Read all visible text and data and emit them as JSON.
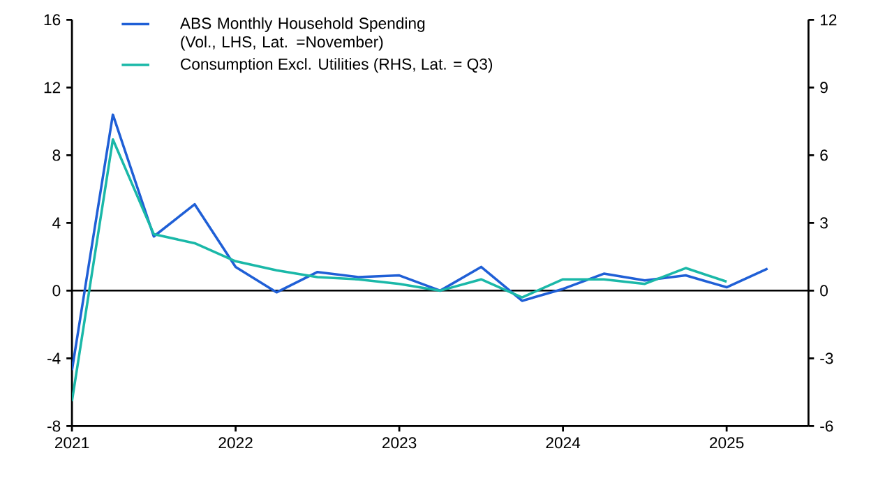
{
  "chart_data": {
    "type": "line",
    "x": [
      2021.0,
      2021.25,
      2021.5,
      2021.75,
      2022.0,
      2022.25,
      2022.5,
      2022.75,
      2023.0,
      2023.25,
      2023.5,
      2023.75,
      2024.0,
      2024.25,
      2024.5,
      2024.75,
      2025.0,
      2025.25
    ],
    "series": [
      {
        "name": "ABS Monthly Household Spending (Vol., LHS, Lat. =November)",
        "color": "#1f5fd6",
        "axis": "y",
        "values": [
          -4.7,
          10.4,
          3.2,
          5.1,
          1.4,
          -0.1,
          1.1,
          0.8,
          0.9,
          0.0,
          1.4,
          -0.6,
          0.1,
          1.0,
          0.6,
          0.9,
          0.2,
          1.3
        ]
      },
      {
        "name": "Consumption Excl. Utilities (RHS, Lat. = Q3)",
        "color": "#1ab8a8",
        "axis": "y2",
        "values": [
          -4.9,
          6.7,
          2.5,
          2.1,
          1.3,
          0.9,
          0.6,
          0.5,
          0.3,
          0.0,
          0.5,
          -0.3,
          0.5,
          0.5,
          0.3,
          1.0,
          0.4,
          null
        ]
      }
    ],
    "xlim": [
      2021,
      2025.5
    ],
    "xticks": [
      2021,
      2022,
      2023,
      2024,
      2025
    ],
    "ylim": [
      -8,
      16
    ],
    "yticks": [
      -8,
      -4,
      0,
      4,
      8,
      12,
      16
    ],
    "y2lim": [
      -6,
      12
    ],
    "y2ticks": [
      -6,
      -3,
      0,
      3,
      6,
      9,
      12
    ],
    "ref_lines": [
      {
        "axis": "y",
        "value": 0
      }
    ],
    "legend": "top left",
    "marker": "none",
    "line_style": "solid",
    "grid": false
  }
}
